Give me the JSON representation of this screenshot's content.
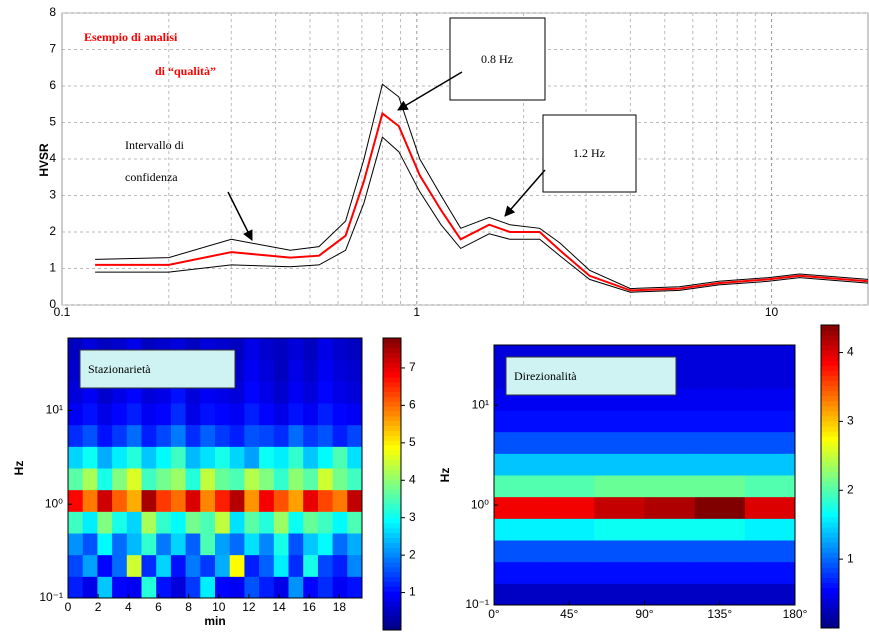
{
  "chart_data": [
    {
      "type": "line",
      "y_label": "HVSR",
      "log_x": true,
      "grid": true,
      "annotations": [
        "Esempio di analisi",
        "di “qualità”",
        "0.8 Hz",
        "1.2 Hz",
        "Intervallo di",
        "confidenza"
      ],
      "x": [
        0.124,
        0.2,
        0.3,
        0.44,
        0.53,
        0.63,
        0.71,
        0.8,
        0.89,
        1.02,
        1.17,
        1.33,
        1.6,
        1.83,
        2.22,
        2.53,
        3.07,
        4.0,
        5.5,
        7.1,
        9.8,
        12,
        18.7
      ],
      "series": [
        {
          "color": "#000000",
          "values": [
            1.25,
            1.3,
            1.8,
            1.5,
            1.6,
            2.3,
            4.0,
            6.05,
            5.7,
            4.0,
            3.0,
            2.1,
            2.4,
            2.2,
            2.1,
            1.7,
            0.95,
            0.45,
            0.5,
            0.65,
            0.75,
            0.85,
            0.7
          ]
        },
        {
          "color": "#ff0000",
          "values": [
            1.1,
            1.1,
            1.45,
            1.3,
            1.35,
            1.9,
            3.4,
            5.25,
            4.9,
            3.55,
            2.6,
            1.8,
            2.2,
            2.0,
            2.0,
            1.5,
            0.8,
            0.4,
            0.45,
            0.6,
            0.7,
            0.8,
            0.65
          ]
        },
        {
          "color": "#000000",
          "values": [
            0.9,
            0.9,
            1.1,
            1.05,
            1.1,
            1.5,
            2.8,
            4.6,
            4.2,
            3.1,
            2.2,
            1.55,
            1.95,
            1.8,
            1.8,
            1.35,
            0.7,
            0.35,
            0.4,
            0.55,
            0.65,
            0.75,
            0.6
          ]
        }
      ],
      "xlim": [
        0.1,
        18.7
      ],
      "xticks": [
        0.1,
        1,
        10
      ],
      "ylim": [
        0,
        8
      ],
      "yticks": [
        0,
        1,
        2,
        3,
        4,
        5,
        6,
        7,
        8
      ]
    },
    {
      "type": "heatmap",
      "title": "Stazionarietà",
      "x_label": "min",
      "y_label": "Hz",
      "log_y": true,
      "xlim": [
        0,
        19.5
      ],
      "xticks": [
        0,
        2,
        4,
        6,
        8,
        10,
        12,
        14,
        16,
        18
      ],
      "ylim": [
        0.1,
        59
      ],
      "yticks": [
        {
          "value": 0.1,
          "label": "10⁻¹"
        },
        {
          "value": 1,
          "label": "10⁰"
        },
        {
          "value": 10,
          "label": "10¹"
        }
      ],
      "clim": [
        0,
        7.8
      ],
      "cticks": [
        1,
        2,
        3,
        4,
        5,
        6,
        7
      ],
      "z": [
        [
          1.2,
          0.8,
          2.5,
          1,
          0.9,
          3.2,
          1.1,
          0.7,
          1.4,
          2.8,
          1,
          0.9,
          1.6,
          1.2,
          0.8,
          2.1,
          1,
          1.3,
          0.9,
          1.1
        ],
        [
          1.5,
          2.2,
          1,
          1.8,
          4.5,
          1.3,
          2.6,
          1.1,
          1.9,
          1.4,
          2.3,
          4.9,
          1.2,
          1.7,
          2.8,
          1.3,
          3.1,
          1.5,
          1.2,
          2
        ],
        [
          2.1,
          1.6,
          2.9,
          1.8,
          2.4,
          3.3,
          1.9,
          2.6,
          1.7,
          3.5,
          2.2,
          1.8,
          2.7,
          2,
          3.1,
          1.6,
          2.5,
          2.9,
          1.8,
          2.3
        ],
        [
          3.4,
          2.8,
          3.9,
          3.1,
          2.6,
          4.2,
          3.3,
          2.9,
          3.8,
          3.5,
          4.4,
          2.7,
          3.6,
          3.2,
          4.1,
          3,
          3.7,
          3.4,
          2.9,
          3.5
        ],
        [
          6.8,
          5.9,
          7.2,
          6.1,
          5.5,
          7.5,
          6.4,
          6,
          7.1,
          5.8,
          6.6,
          7.4,
          5.7,
          6.9,
          6.2,
          5.6,
          7,
          6.3,
          5.9,
          7.3
        ],
        [
          3.6,
          4.2,
          3.1,
          3.9,
          4.6,
          3.4,
          3.8,
          4.1,
          3.2,
          4.4,
          3.7,
          3.5,
          4.3,
          3.9,
          3.3,
          4,
          3.6,
          4.5,
          3.8,
          3.4
        ],
        [
          2.6,
          3,
          2.3,
          2.8,
          3.2,
          2.5,
          2.9,
          3.4,
          2.4,
          2.7,
          3.1,
          2.6,
          2.2,
          3,
          2.8,
          3.3,
          2.5,
          2.9,
          3.5,
          2.7
        ],
        [
          1.3,
          1.6,
          1.1,
          1.4,
          1.8,
          1.2,
          1.5,
          1.9,
          1.3,
          1.7,
          1.4,
          1.2,
          1.6,
          1.5,
          1.3,
          1.8,
          1.4,
          1.6,
          1.2,
          1.5
        ],
        [
          0.9,
          1.1,
          0.8,
          1,
          1.2,
          0.9,
          1,
          1.3,
          0.8,
          1.1,
          1,
          0.9,
          1.2,
          1,
          0.8,
          1.1,
          0.9,
          1.2,
          1,
          0.9
        ],
        [
          0.7,
          0.9,
          0.6,
          0.8,
          1,
          0.7,
          0.8,
          1.1,
          0.7,
          0.9,
          0.8,
          0.7,
          1,
          0.8,
          0.6,
          0.9,
          0.7,
          1,
          0.8,
          0.7
        ],
        [
          0.6,
          0.8,
          0.5,
          0.7,
          0.9,
          0.6,
          0.7,
          0.8,
          0.6,
          0.8,
          0.7,
          0.6,
          0.9,
          0.7,
          0.5,
          0.8,
          0.6,
          0.9,
          0.7,
          0.6
        ],
        [
          0.5,
          0.7,
          0.5,
          0.6,
          0.8,
          0.5,
          0.6,
          0.7,
          0.5,
          0.7,
          0.6,
          0.5,
          0.8,
          0.6,
          0.5,
          0.7,
          0.5,
          0.8,
          0.6,
          0.5
        ]
      ]
    },
    {
      "type": "heatmap",
      "title": "Direzionalità",
      "y_label": "Hz",
      "log_y": true,
      "xlim": [
        0,
        180
      ],
      "xticks": [
        {
          "value": 0,
          "label": "0°"
        },
        {
          "value": 45,
          "label": "45°"
        },
        {
          "value": 90,
          "label": "90°"
        },
        {
          "value": 135,
          "label": "135°"
        },
        {
          "value": 180,
          "label": "180°"
        }
      ],
      "ylim": [
        0.1,
        40
      ],
      "yticks": [
        {
          "value": 0.1,
          "label": "10⁻¹"
        },
        {
          "value": 1,
          "label": "10⁰"
        },
        {
          "value": 10,
          "label": "10¹"
        }
      ],
      "clim": [
        0,
        4.4
      ],
      "cticks": [
        1,
        2,
        3,
        4
      ],
      "z": [
        [
          0.3,
          0.3,
          0.3,
          0.3,
          0.3,
          0.3
        ],
        [
          0.6,
          0.6,
          0.6,
          0.6,
          0.6,
          0.6
        ],
        [
          0.9,
          0.9,
          0.9,
          0.9,
          0.9,
          0.9
        ],
        [
          1.6,
          1.6,
          1.7,
          1.7,
          1.7,
          1.6
        ],
        [
          3.9,
          3.9,
          4.1,
          4.2,
          4.4,
          4.0
        ],
        [
          2.0,
          2.0,
          2.1,
          2.1,
          2.1,
          2.0
        ],
        [
          1.4,
          1.4,
          1.4,
          1.4,
          1.4,
          1.4
        ],
        [
          0.9,
          0.9,
          0.9,
          0.9,
          0.9,
          0.9
        ],
        [
          0.6,
          0.6,
          0.6,
          0.6,
          0.6,
          0.6
        ],
        [
          0.5,
          0.5,
          0.5,
          0.5,
          0.5,
          0.5
        ],
        [
          0.4,
          0.4,
          0.4,
          0.4,
          0.4,
          0.4
        ],
        [
          0.4,
          0.4,
          0.4,
          0.4,
          0.4,
          0.4
        ]
      ]
    }
  ]
}
